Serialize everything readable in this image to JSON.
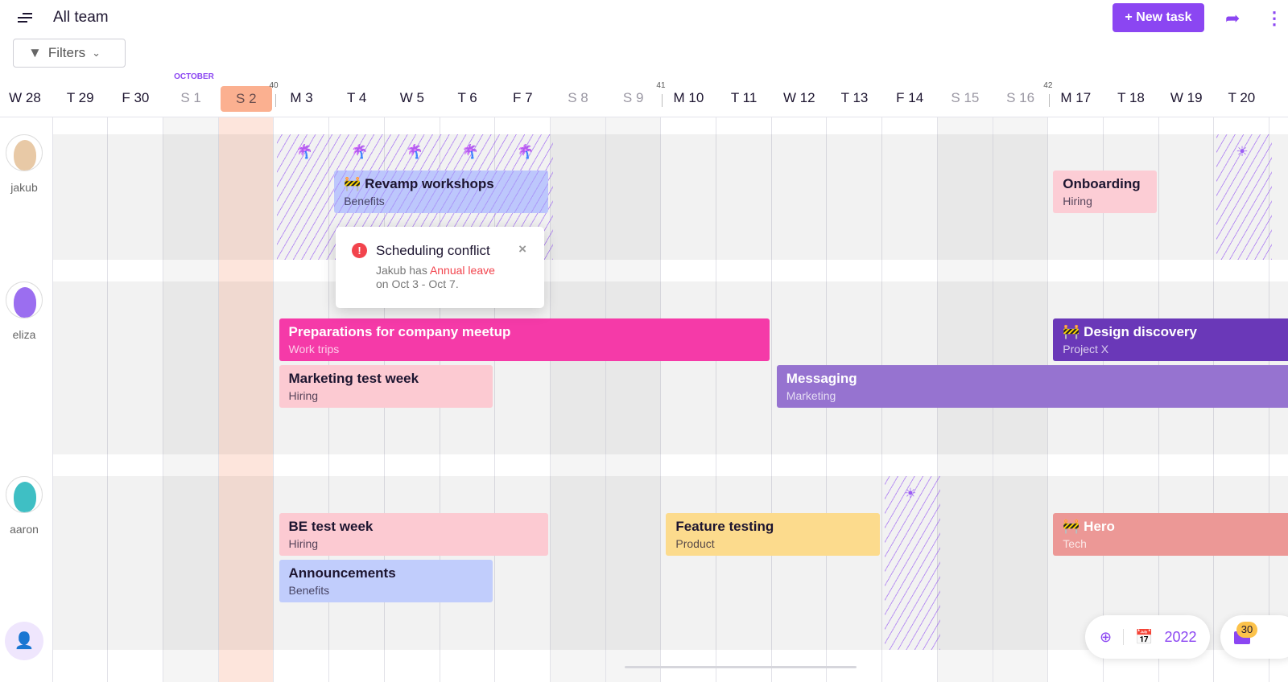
{
  "header": {
    "title": "All team",
    "new_task": "+ New task",
    "filters": "Filters"
  },
  "calendar": {
    "month": "OCTOBER",
    "today": "S 2",
    "days": [
      "W 28",
      "T 29",
      "F 30",
      "S 1",
      "S 2",
      "M 3",
      "T 4",
      "W 5",
      "T 6",
      "F 7",
      "S 8",
      "S 9",
      "M 10",
      "T 11",
      "W 12",
      "T 13",
      "F 14",
      "S 15",
      "S 16",
      "M 17",
      "T 18",
      "W 19",
      "T 20"
    ],
    "weekends": [
      3,
      4,
      10,
      11,
      17,
      18
    ],
    "weeks": [
      {
        "label": "40",
        "before": 5
      },
      {
        "label": "41",
        "before": 12
      },
      {
        "label": "42",
        "before": 19
      }
    ]
  },
  "people": [
    {
      "name": "jakub",
      "avatar_color": "#e8c9a6",
      "leave": [
        {
          "from": 5,
          "to": 9,
          "icon": "palm-tree-icon"
        },
        {
          "from": 22,
          "to": 22,
          "icon": "sun-icon"
        }
      ],
      "events": [
        {
          "title": "🚧 Revamp workshops",
          "sub": "Benefits",
          "from": 6,
          "to": 9,
          "row": 0,
          "bg": "#bdc7fc",
          "fg": "#1d1530",
          "hatched": true
        },
        {
          "title": "Onboarding",
          "sub": "Hiring",
          "from": 19,
          "to": 20,
          "row": 0,
          "bg": "#fccdd5",
          "fg": "#1d1530"
        }
      ]
    },
    {
      "name": "eliza",
      "avatar_color": "#9b6ef0",
      "leave": [],
      "events": [
        {
          "title": "Preparations for company meetup",
          "sub": "Work trips",
          "from": 5,
          "to": 13,
          "row": 0,
          "bg": "#f53aa8",
          "fg": "#ffffff"
        },
        {
          "title": "🚧 Design discovery",
          "sub": "Project X",
          "from": 19,
          "to": 23,
          "row": 0,
          "bg": "#6a38b8",
          "fg": "#ffffff"
        },
        {
          "title": "Marketing test week",
          "sub": "Hiring",
          "from": 5,
          "to": 8,
          "row": 1,
          "bg": "#fccad2",
          "fg": "#1d1530"
        },
        {
          "title": "Messaging",
          "sub": "Marketing",
          "from": 14,
          "to": 23,
          "row": 1,
          "bg": "#9673d0",
          "fg": "#ffffff"
        }
      ]
    },
    {
      "name": "aaron",
      "avatar_color": "#3fbfc4",
      "leave": [
        {
          "from": 16,
          "to": 16,
          "icon": "sun-icon"
        }
      ],
      "events": [
        {
          "title": "BE test week",
          "sub": "Hiring",
          "from": 5,
          "to": 9,
          "row": 0,
          "bg": "#fccad2",
          "fg": "#1d1530"
        },
        {
          "title": "Feature testing",
          "sub": "Product",
          "from": 12,
          "to": 15,
          "row": 0,
          "bg": "#fcdb8d",
          "fg": "#1d1530"
        },
        {
          "title": "🚧 Hero",
          "sub": "Tech",
          "from": 19,
          "to": 23,
          "row": 0,
          "bg": "#ec9896",
          "fg": "#ffffff"
        },
        {
          "title": "Announcements",
          "sub": "Benefits",
          "from": 5,
          "to": 8,
          "row": 1,
          "bg": "#c1cdfc",
          "fg": "#1d1530"
        }
      ]
    }
  ],
  "popup": {
    "title": "Scheduling conflict",
    "text1": "Jakub has ",
    "highlight": "Annual leave",
    "text2": "on Oct 3 - Oct 7."
  },
  "controls": {
    "year": "2022",
    "inbox_count": "30"
  },
  "colors": {
    "accent": "#8b46f2",
    "today": "#fbb090",
    "error": "#f2444d"
  }
}
